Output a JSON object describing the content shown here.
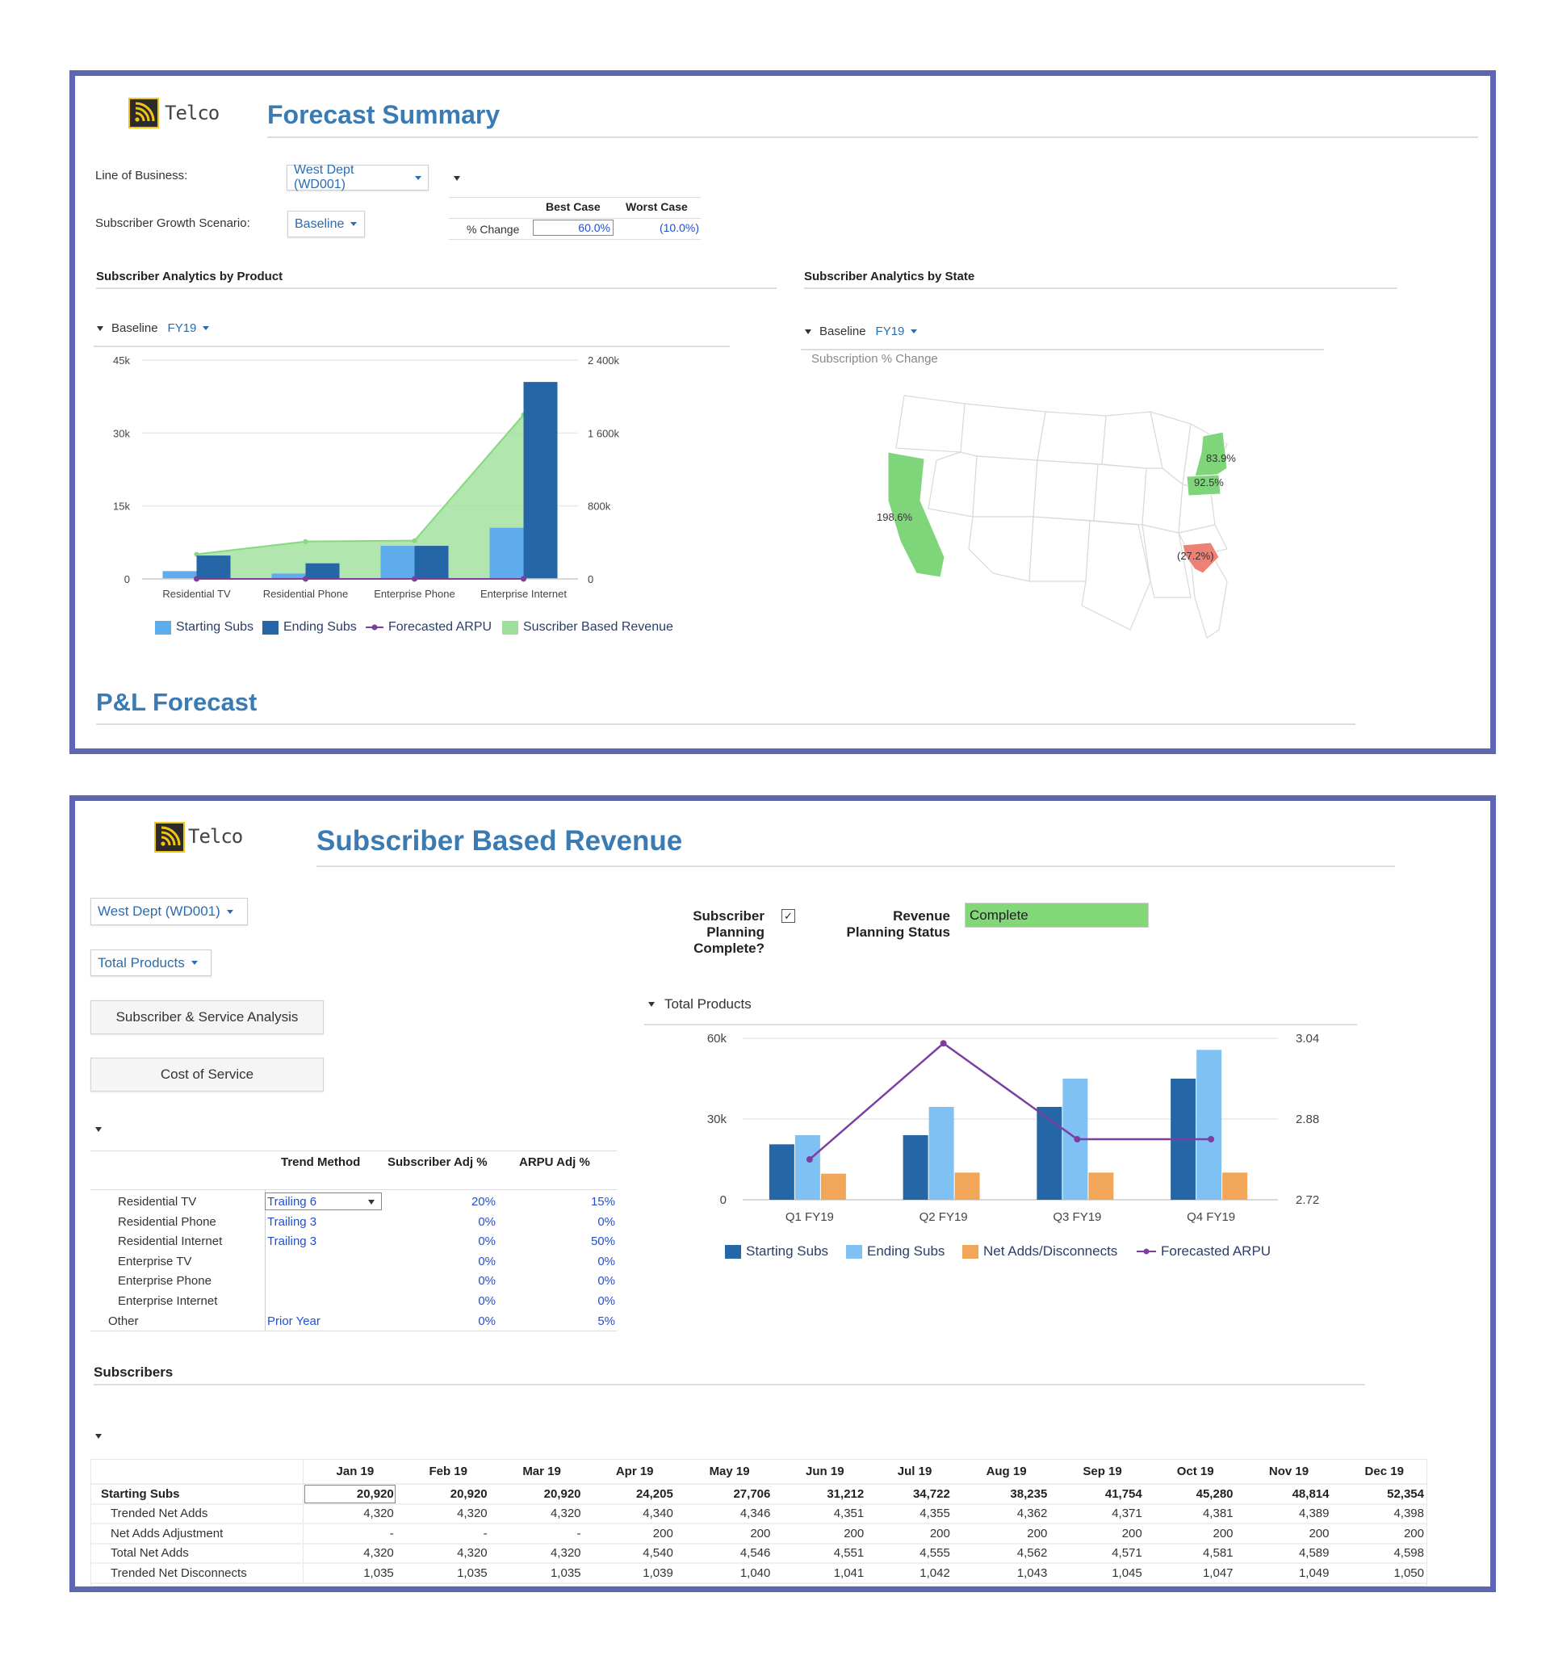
{
  "colors": {
    "border": "#5d66b2",
    "title_blue": "#3a7bb3",
    "starting_subs": "#5eacec",
    "ending_subs": "#2566a6",
    "revenue_fill": "#9ee09a",
    "arpu_line": "#7b3fa1",
    "net_adds": "#f2a65a",
    "ending_subs_light": "#7fc1f2",
    "positive_state": "#7fd67a",
    "negative_state": "#ed8274",
    "complete_status": "#82d877"
  },
  "forecast_summary": {
    "logo_text": "Telco",
    "logo_icon": "wifi-signal-icon",
    "title": "Forecast Summary",
    "line_of_business_label": "Line of Business:",
    "line_of_business_value": "West Dept (WD001)",
    "growth_scenario_label": "Subscriber Growth Scenario:",
    "growth_scenario_value": "Baseline",
    "scenario_table": {
      "headers": [
        "Best Case",
        "Worst Case"
      ],
      "row_label": "% Change",
      "best_case": "60.0%",
      "worst_case": "(10.0%)"
    },
    "product_section_title": "Subscriber Analytics by Product",
    "state_section_title": "Subscriber Analytics by State",
    "product_filter": {
      "scenario": "Baseline",
      "year": "FY19"
    },
    "state_filter": {
      "scenario": "Baseline",
      "year": "FY19"
    },
    "map": {
      "subtitle": "Subscription % Change",
      "states": [
        {
          "state": "California",
          "label": "198.6%"
        },
        {
          "state": "New York",
          "label": "83.9%"
        },
        {
          "state": "Pennsylvania",
          "label": "92.5%"
        },
        {
          "state": "South Carolina",
          "label": "(27.2%)"
        }
      ]
    },
    "pl_title": "P&L Forecast"
  },
  "subscriber_revenue": {
    "logo_text": "Telco",
    "title": "Subscriber Based Revenue",
    "dept_dropdown": "West Dept (WD001)",
    "product_dropdown": "Total Products",
    "buttons": [
      "Subscriber & Service Analysis",
      "Cost of Service"
    ],
    "subscriber_planning_label": [
      "Subscriber",
      "Planning",
      "Complete?"
    ],
    "subscriber_planning_checked": true,
    "revenue_status_label": [
      "Revenue",
      "Planning Status"
    ],
    "revenue_status_value": "Complete",
    "chart_filter": "Total Products",
    "trend_table": {
      "headers": [
        "Trend Method",
        "Subscriber Adj %",
        "ARPU Adj %"
      ],
      "rows": [
        {
          "product": "Residential TV",
          "method": "Trailing 6",
          "sub_adj": "20%",
          "arpu_adj": "15%"
        },
        {
          "product": "Residential Phone",
          "method": "Trailing 3",
          "sub_adj": "0%",
          "arpu_adj": "0%"
        },
        {
          "product": "Residential Internet",
          "method": "Trailing 3",
          "sub_adj": "0%",
          "arpu_adj": "50%"
        },
        {
          "product": "Enterprise TV",
          "method": "",
          "sub_adj": "0%",
          "arpu_adj": "0%"
        },
        {
          "product": "Enterprise Phone",
          "method": "",
          "sub_adj": "0%",
          "arpu_adj": "0%"
        },
        {
          "product": "Enterprise Internet",
          "method": "",
          "sub_adj": "0%",
          "arpu_adj": "0%"
        },
        {
          "product": "Other",
          "method": "Prior Year",
          "sub_adj": "0%",
          "arpu_adj": "5%"
        }
      ]
    },
    "subscribers_title": "Subscribers",
    "subscribers_table": {
      "months": [
        "Jan 19",
        "Feb 19",
        "Mar 19",
        "Apr 19",
        "May 19",
        "Jun 19",
        "Jul 19",
        "Aug 19",
        "Sep 19",
        "Oct 19",
        "Nov 19",
        "Dec 19"
      ],
      "rows": [
        {
          "label": "Starting Subs",
          "bold": true,
          "values": [
            "20,920",
            "20,920",
            "20,920",
            "24,205",
            "27,706",
            "31,212",
            "34,722",
            "38,235",
            "41,754",
            "45,280",
            "48,814",
            "52,354"
          ]
        },
        {
          "label": "Trended Net Adds",
          "bold": false,
          "values": [
            "4,320",
            "4,320",
            "4,320",
            "4,340",
            "4,346",
            "4,351",
            "4,355",
            "4,362",
            "4,371",
            "4,381",
            "4,389",
            "4,398"
          ]
        },
        {
          "label": "Net Adds Adjustment",
          "bold": false,
          "values": [
            "-",
            "-",
            "-",
            "200",
            "200",
            "200",
            "200",
            "200",
            "200",
            "200",
            "200",
            "200"
          ]
        },
        {
          "label": "Total Net Adds",
          "bold": false,
          "values": [
            "4,320",
            "4,320",
            "4,320",
            "4,540",
            "4,546",
            "4,551",
            "4,555",
            "4,562",
            "4,571",
            "4,581",
            "4,589",
            "4,598"
          ]
        },
        {
          "label": "Trended Net Disconnects",
          "bold": false,
          "values": [
            "1,035",
            "1,035",
            "1,035",
            "1,039",
            "1,040",
            "1,041",
            "1,042",
            "1,043",
            "1,045",
            "1,047",
            "1,049",
            "1,050"
          ]
        }
      ]
    }
  },
  "chart_data": [
    {
      "type": "bar",
      "title": "Subscriber Analytics by Product",
      "categories": [
        "Residential TV",
        "Residential Phone",
        "Enterprise Phone",
        "Enterprise Internet"
      ],
      "series": [
        {
          "name": "Starting Subs",
          "type": "bar",
          "axis": "left",
          "values": [
            1600,
            1100,
            6800,
            10500
          ]
        },
        {
          "name": "Ending Subs",
          "type": "bar",
          "axis": "left",
          "values": [
            4800,
            3200,
            6800,
            40500
          ]
        },
        {
          "name": "Forecasted ARPU",
          "type": "line",
          "axis": "left",
          "values": [
            0,
            0,
            0,
            0
          ]
        },
        {
          "name": "Suscriber Based Revenue",
          "type": "area",
          "axis": "right",
          "values": [
            270000,
            410000,
            420000,
            1800000
          ]
        }
      ],
      "y_left": {
        "ticks": [
          "0",
          "15k",
          "30k",
          "45k"
        ],
        "range": [
          0,
          45000
        ]
      },
      "y_right": {
        "ticks": [
          "0",
          "800k",
          "1 600k",
          "2 400k"
        ],
        "range": [
          0,
          2400000
        ]
      },
      "grid": true,
      "legend": "bottom"
    },
    {
      "type": "bar",
      "title": "Total Products",
      "categories": [
        "Q1 FY19",
        "Q2 FY19",
        "Q3 FY19",
        "Q4 FY19"
      ],
      "series": [
        {
          "name": "Starting Subs",
          "type": "bar",
          "axis": "left",
          "values": [
            20600,
            24000,
            34500,
            45000
          ]
        },
        {
          "name": "Ending Subs",
          "type": "bar",
          "axis": "left",
          "values": [
            24000,
            34500,
            45000,
            55700
          ]
        },
        {
          "name": "Net Adds/Disconnects",
          "type": "bar",
          "axis": "left",
          "values": [
            9700,
            10100,
            10100,
            10100
          ]
        },
        {
          "name": "Forecasted ARPU",
          "type": "line",
          "axis": "right",
          "values": [
            2.8,
            3.03,
            2.84,
            2.84
          ]
        }
      ],
      "y_left": {
        "ticks": [
          "0",
          "30k",
          "60k"
        ],
        "range": [
          0,
          60000
        ]
      },
      "y_right": {
        "ticks": [
          "2.72",
          "2.88",
          "3.04"
        ],
        "range": [
          2.72,
          3.04
        ]
      },
      "grid": true,
      "legend": "bottom"
    }
  ]
}
